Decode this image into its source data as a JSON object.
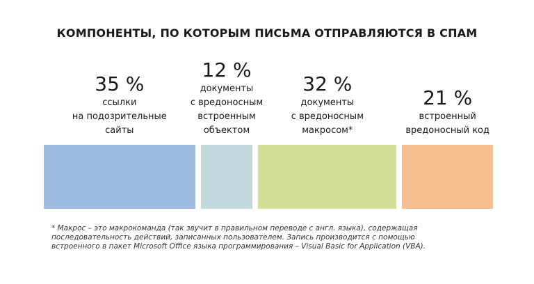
{
  "title": "КОМПОНЕНТЫ, ПО КОТОРЫМ ПИСЬМА ОТПРАВЛЯЮТСЯ В СПАМ",
  "chart_data": {
    "type": "bar",
    "title": "КОМПОНЕНТЫ, ПО КОТОРЫМ ПИСЬМА ОТПРАВЛЯЮТСЯ В СПАМ",
    "categories": [
      "ссылки на подозрительные сайты",
      "документы с вредоносным встроенным объектом",
      "документы с вредоносным макросом*",
      "встроенный вредоносный код"
    ],
    "values": [
      35,
      12,
      32,
      21
    ],
    "unit": "%"
  },
  "segments": [
    {
      "percent": "35 %",
      "lines": [
        "ссылки",
        "на подозрительные",
        "сайты"
      ],
      "color": "#9ebbe1"
    },
    {
      "percent": "12 %",
      "lines": [
        "документы",
        "с вредоносным",
        "встроенным",
        "объектом"
      ],
      "color": "#c4d8e0"
    },
    {
      "percent": "32 %",
      "lines": [
        "документы",
        "с вредоносным",
        "макросом*"
      ],
      "color": "#d5df99"
    },
    {
      "percent": "21 %",
      "lines": [
        "встроенный",
        "вредоносный код"
      ],
      "color": "#f4be91"
    }
  ],
  "footnote": {
    "lines": [
      "* Макрос – это макрокоманда (так звучит в правильном переводе с англ. языка), содержащая",
      "последовательность действий, записанных пользователем. Запись производится с помощью",
      "встроенного в пакет Microsoft Office языка программирования – Visual Basic for Application (VBA)."
    ]
  }
}
